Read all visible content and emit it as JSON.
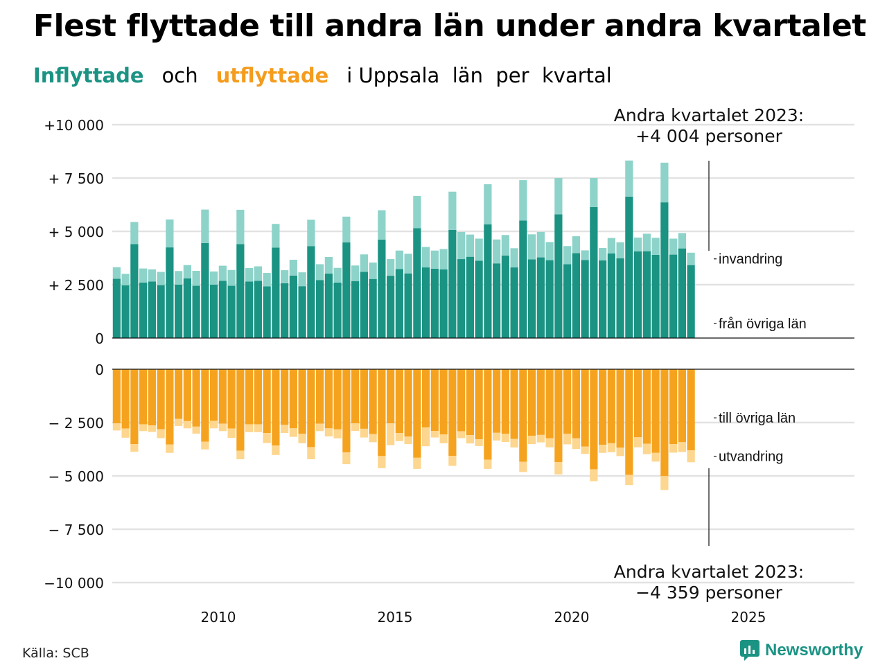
{
  "title": "Flest flyttade till andra län under andra kvartalet",
  "subtitle": {
    "in_label": "Inflyttade",
    "and_word": "och",
    "out_label": "utflyttade",
    "rest": "i Uppsala  län  per  kvartal"
  },
  "source": "Källa: SCB",
  "logo_text": "Newsworthy",
  "annotations": {
    "top": [
      "Andra kvartalet 2023:",
      "+4 004 personer"
    ],
    "bottom": [
      "Andra kvartalet 2023:",
      "−4 359 personer"
    ]
  },
  "colors": {
    "in_domestic": "#1a9383",
    "in_immigration": "#8dd3c9",
    "out_domestic": "#f5a31f",
    "out_emigration": "#fdd68f",
    "grid": "#e2e2e2",
    "brand": "#1a9383"
  },
  "chart_data": {
    "type": "bar",
    "stacked": true,
    "x_ticks": [
      "2010",
      "2015",
      "2020",
      "2025"
    ],
    "xlim": [
      2007,
      2028
    ],
    "top_panel": {
      "ylim": [
        0,
        10000
      ],
      "y_ticks": [
        "0",
        "+ 2 500",
        "+ 5 000",
        "+ 7 500",
        "+10 000"
      ],
      "series": [
        {
          "name": "från övriga län",
          "values": [
            2780,
            2470,
            4400,
            2600,
            2650,
            2480,
            4250,
            2500,
            2800,
            2450,
            4450,
            2500,
            2680,
            2450,
            4400,
            2650,
            2680,
            2420,
            4240,
            2570,
            2930,
            2430,
            4310,
            2720,
            3020,
            2600,
            4480,
            2670,
            3100,
            2770,
            4610,
            2920,
            3230,
            3030,
            5150,
            3310,
            3250,
            3220,
            5070,
            3700,
            3810,
            3620,
            5330,
            3500,
            3870,
            3310,
            5510,
            3690,
            3780,
            3650,
            5800,
            3460,
            3980,
            3660,
            6140,
            3640,
            3970,
            3740,
            6630,
            4060,
            4070,
            3900,
            6360,
            3910,
            4200,
            3420
          ]
        },
        {
          "name": "invandring",
          "values": [
            540,
            540,
            1040,
            660,
            570,
            620,
            1310,
            640,
            620,
            700,
            1570,
            620,
            710,
            740,
            1610,
            630,
            680,
            630,
            1110,
            610,
            740,
            650,
            1240,
            740,
            780,
            690,
            1210,
            730,
            820,
            770,
            1380,
            780,
            870,
            920,
            1510,
            960,
            850,
            950,
            1790,
            1270,
            1040,
            1040,
            1880,
            1120,
            960,
            900,
            1890,
            1170,
            1190,
            850,
            1700,
            850,
            790,
            450,
            1360,
            580,
            720,
            750,
            1690,
            650,
            820,
            800,
            1860,
            750,
            720,
            580
          ]
        },
        {
          "name": "",
          "values": []
        }
      ]
    },
    "bottom_panel": {
      "ylim": [
        -10000,
        0
      ],
      "y_ticks": [
        "0",
        "− 2 500",
        "− 5 000",
        "− 7 500",
        "−10 000"
      ],
      "series": [
        {
          "name": "till övriga län",
          "values": [
            -2540,
            -2780,
            -3510,
            -2580,
            -2630,
            -2810,
            -3530,
            -2330,
            -2430,
            -2690,
            -3400,
            -2420,
            -2550,
            -2780,
            -3820,
            -2580,
            -2580,
            -2990,
            -3580,
            -2610,
            -2770,
            -3030,
            -3650,
            -2550,
            -2770,
            -2820,
            -3900,
            -2540,
            -2790,
            -3040,
            -4070,
            -2540,
            -2990,
            -3160,
            -4150,
            -2730,
            -2890,
            -3060,
            -4060,
            -2910,
            -3090,
            -3280,
            -4240,
            -2980,
            -3030,
            -3270,
            -4340,
            -3120,
            -3080,
            -3240,
            -4350,
            -3020,
            -3240,
            -3620,
            -4690,
            -3540,
            -3470,
            -3680,
            -4950,
            -3190,
            -3490,
            -3920,
            -5010,
            -3510,
            -3420,
            -3800
          ]
        },
        {
          "name": "utvandring",
          "values": [
            -330,
            -430,
            -360,
            -320,
            -310,
            -420,
            -390,
            -330,
            -340,
            -330,
            -360,
            -350,
            -350,
            -440,
            -400,
            -370,
            -370,
            -470,
            -440,
            -380,
            -400,
            -440,
            -570,
            -350,
            -380,
            -420,
            -550,
            -350,
            -410,
            -380,
            -570,
            -1020,
            -380,
            -350,
            -520,
            -880,
            -310,
            -410,
            -470,
            -320,
            -390,
            -320,
            -430,
            -360,
            -380,
            -400,
            -480,
            -390,
            -350,
            -420,
            -580,
            -500,
            -500,
            -350,
            -560,
            -380,
            -420,
            -390,
            -480,
            -470,
            -490,
            -410,
            -650,
            -400,
            -460,
            -560
          ]
        }
      ]
    },
    "first_quarter": "2007 Q1",
    "last_quarter": "2023 Q2",
    "legend_labels": {
      "in_immigration": "invandring",
      "in_domestic": "från övriga län",
      "out_domestic": "till övriga län",
      "out_emigration": "utvandring"
    }
  }
}
